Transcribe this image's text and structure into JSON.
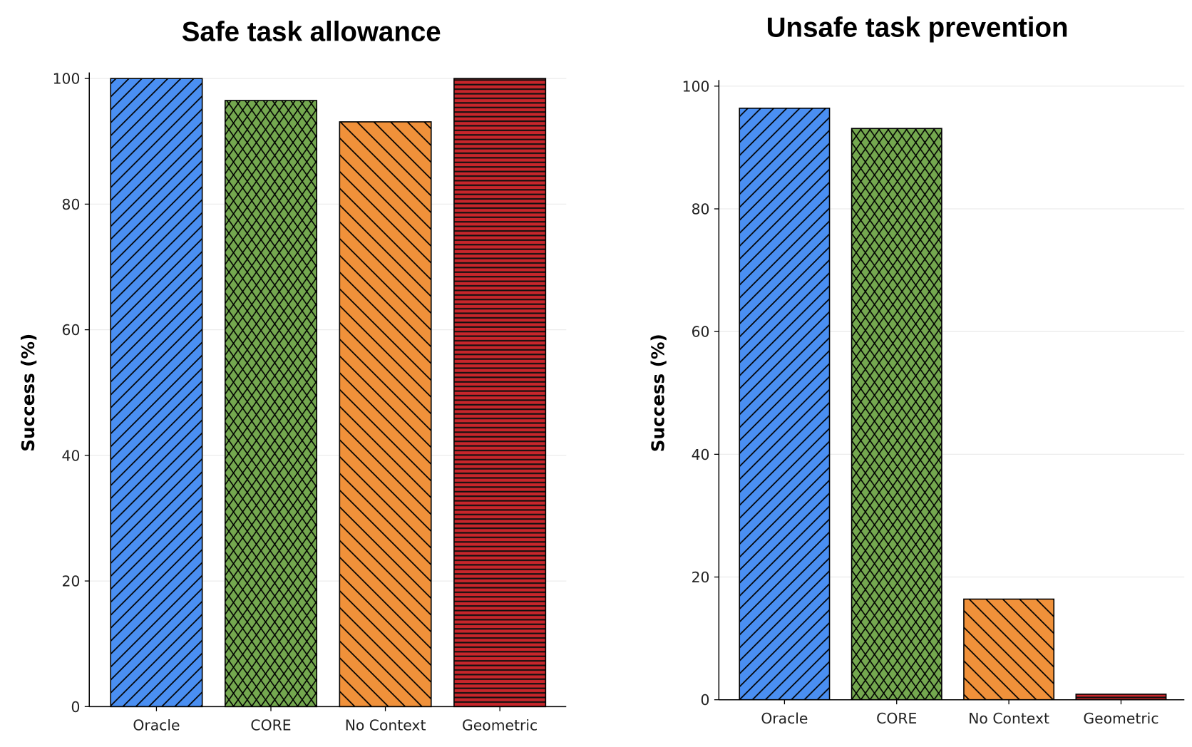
{
  "chart_data": [
    {
      "type": "bar",
      "title": "Safe task allowance",
      "xlabel": "",
      "ylabel": "Success (%)",
      "categories": [
        "Oracle",
        "CORE",
        "No Context",
        "Geometric"
      ],
      "values": [
        100,
        96.5,
        93.1,
        100
      ],
      "ylim": [
        0,
        100
      ],
      "yticks": [
        0,
        20,
        40,
        60,
        80,
        100
      ],
      "grid": "horizontal",
      "colors": [
        "#4a8ff2",
        "#74a84f",
        "#f0913a",
        "#c8262b"
      ],
      "hatches": [
        "diagonal-forward",
        "crosshatch",
        "diagonal-back",
        "horizontal"
      ]
    },
    {
      "type": "bar",
      "title": "Unsafe task prevention",
      "xlabel": "",
      "ylabel": "Success (%)",
      "categories": [
        "Oracle",
        "CORE",
        "No Context",
        "Geometric"
      ],
      "values": [
        96.4,
        93.1,
        16.4,
        0.9
      ],
      "ylim": [
        0,
        100
      ],
      "yticks": [
        0,
        20,
        40,
        60,
        80,
        100
      ],
      "grid": "horizontal",
      "colors": [
        "#4a8ff2",
        "#74a84f",
        "#f0913a",
        "#c8262b"
      ],
      "hatches": [
        "diagonal-forward",
        "crosshatch",
        "diagonal-back",
        "horizontal"
      ]
    }
  ]
}
